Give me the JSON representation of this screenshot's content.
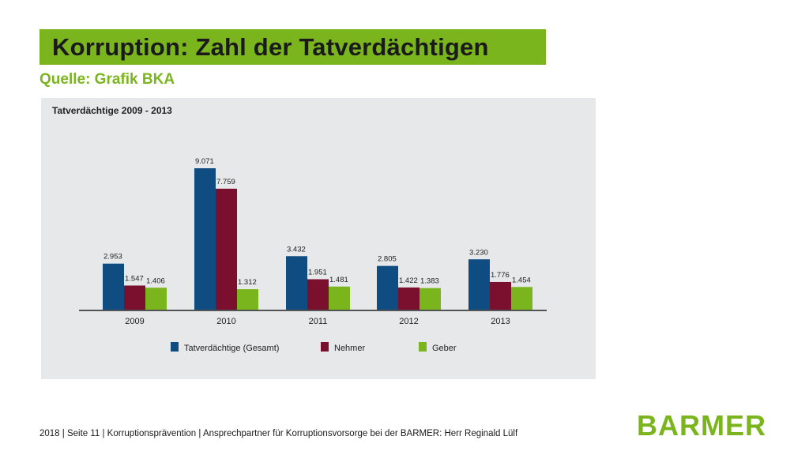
{
  "slide": {
    "title": "Korruption: Zahl der Tatverdächtigen",
    "source": "Quelle: Grafik BKA",
    "footer": "2018 | Seite 11 | Korruptionsprävention | Ansprechpartner für Korruptionsvorsorge bei der BARMER: Herr Reginald Lülf",
    "logo": "BARMER",
    "accent_color": "#7ab51d"
  },
  "chart_data": {
    "type": "bar",
    "title": "Tatverdächtige 2009 - 2013",
    "categories": [
      "2009",
      "2010",
      "2011",
      "2012",
      "2013"
    ],
    "series": [
      {
        "name": "Tatverdächtige (Gesamt)",
        "color": "#0f4c81",
        "values": [
          2953,
          9071,
          3432,
          2805,
          3230
        ],
        "labels": [
          "2.953",
          "9.071",
          "3.432",
          "2.805",
          "3.230"
        ]
      },
      {
        "name": "Nehmer",
        "color": "#7a0f2e",
        "values": [
          1547,
          7759,
          1951,
          1422,
          1776
        ],
        "labels": [
          "1.547",
          "7.759",
          "1.951",
          "1.422",
          "1.776"
        ]
      },
      {
        "name": "Geber",
        "color": "#7ab51d",
        "values": [
          1406,
          1312,
          1481,
          1383,
          1454
        ],
        "labels": [
          "1.406",
          "1.312",
          "1.481",
          "1.383",
          "1.454"
        ]
      }
    ],
    "ylim": [
      0,
      9071
    ],
    "grid": false,
    "legend_position": "bottom"
  }
}
